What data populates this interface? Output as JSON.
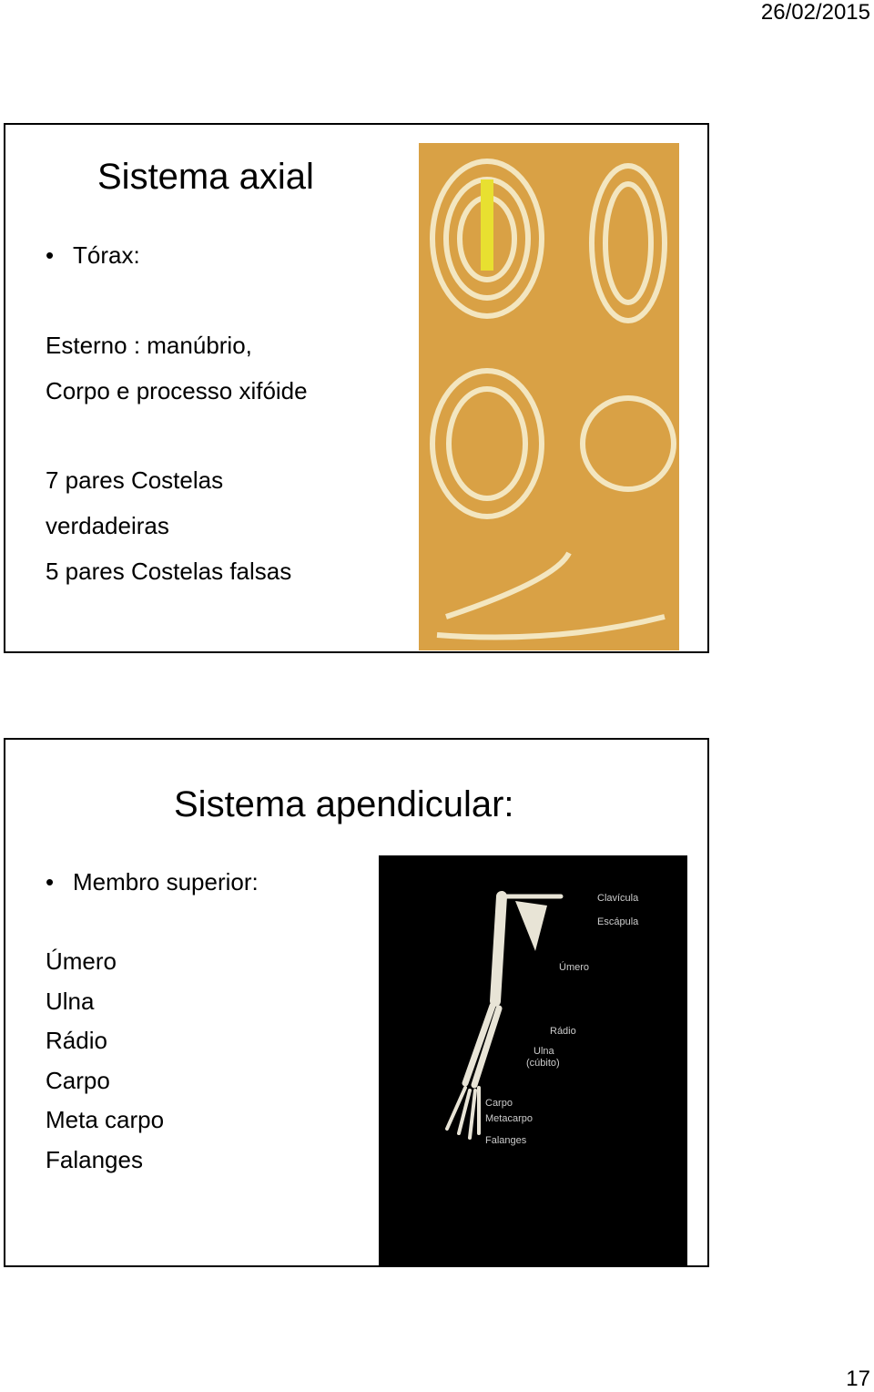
{
  "header": {
    "date": "26/02/2015"
  },
  "slides": [
    {
      "title": "Sistema axial",
      "bullet": "Tórax:",
      "lines": [
        "Esterno : manúbrio,",
        "Corpo e processo xifóide",
        "7 pares Costelas",
        "verdadeiras",
        "5 pares Costelas falsas"
      ]
    },
    {
      "title": "Sistema apendicular:",
      "bullet": "Membro superior:",
      "lines": [
        "Úmero",
        "Ulna",
        "Rádio",
        "Carpo",
        "Meta carpo",
        "Falanges"
      ],
      "image_labels": [
        "Clavícula",
        "Escápula",
        "Úmero",
        "Rádio",
        "Ulna",
        "(cúbito)",
        "Carpo",
        "Metacarpo",
        "Falanges"
      ]
    }
  ],
  "footer": {
    "page": "17"
  }
}
